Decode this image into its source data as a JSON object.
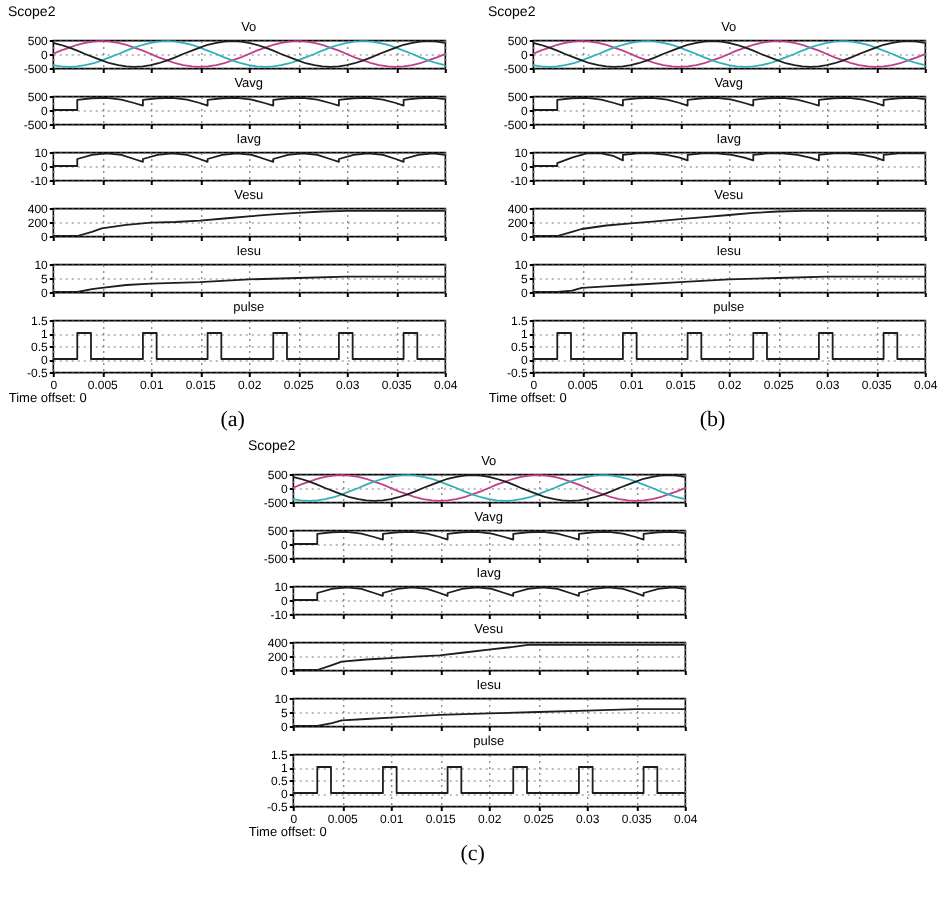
{
  "chart_data": [
    {
      "type": "line",
      "title": "Vo",
      "annotations": [
        "Scope2"
      ],
      "x": [
        0,
        0.0008,
        0.0017,
        0.0025,
        0.0033,
        0.0042,
        0.005,
        0.0058,
        0.0067,
        0.0075,
        0.0083,
        0.0092,
        0.01,
        0.0108,
        0.0117,
        0.0125,
        0.0133,
        0.0142,
        0.015,
        0.0158,
        0.0167,
        0.0175,
        0.0183,
        0.0192,
        0.02,
        0.0208,
        0.0217,
        0.0225,
        0.0233,
        0.0242,
        0.025,
        0.0258,
        0.0267,
        0.0275,
        0.0283,
        0.0292,
        0.03,
        0.0308,
        0.0317,
        0.0325,
        0.0333,
        0.0342,
        0.035,
        0.0358,
        0.0367,
        0.0375,
        0.0383,
        0.0392,
        0.04
      ],
      "series": [
        {
          "color": "#c0408c",
          "values": [
            0,
            120,
            230,
            330,
            400,
            440,
            460,
            440,
            400,
            330,
            230,
            120,
            0,
            -120,
            -230,
            -330,
            -400,
            -440,
            -460,
            -440,
            -400,
            -330,
            -230,
            -120,
            0,
            120,
            230,
            330,
            400,
            440,
            460,
            440,
            400,
            330,
            230,
            120,
            0,
            -120,
            -230,
            -330,
            -400,
            -440,
            -460,
            -440,
            -400,
            -330,
            -230,
            -120,
            0
          ]
        },
        {
          "color": "#30b0b8",
          "values": [
            -400,
            -440,
            -460,
            -440,
            -400,
            -330,
            -230,
            -120,
            0,
            120,
            230,
            330,
            400,
            440,
            460,
            440,
            400,
            330,
            230,
            120,
            0,
            -120,
            -230,
            -330,
            -400,
            -440,
            -460,
            -440,
            -400,
            -330,
            -230,
            -120,
            0,
            120,
            230,
            330,
            400,
            440,
            460,
            440,
            400,
            330,
            230,
            120,
            0,
            -120,
            -230,
            -330,
            -400
          ]
        },
        {
          "color": "#1e1e1e",
          "values": [
            400,
            330,
            230,
            120,
            0,
            -120,
            -230,
            -330,
            -400,
            -440,
            -460,
            -440,
            -400,
            -330,
            -230,
            -120,
            0,
            120,
            230,
            330,
            400,
            440,
            460,
            440,
            400,
            330,
            230,
            120,
            0,
            -120,
            -230,
            -330,
            -400,
            -440,
            -460,
            -440,
            -400,
            -330,
            -230,
            -120,
            0,
            120,
            230,
            330,
            400,
            440,
            460,
            440,
            400
          ]
        }
      ],
      "xlim": [
        0,
        0.04
      ],
      "xticks": [
        0,
        0.005,
        0.01,
        0.015,
        0.02,
        0.025,
        0.03,
        0.035,
        0.04
      ],
      "ylim": [
        -500,
        500
      ],
      "yticks": [
        -500,
        0,
        500
      ],
      "tick_labels": "y",
      "grid": true
    },
    {
      "type": "line",
      "title": "Vavg",
      "x": [
        0,
        0.0025,
        0.0025,
        0.004,
        0.0055,
        0.007,
        0.0083,
        0.0092,
        0.0092,
        0.0107,
        0.0122,
        0.0137,
        0.015,
        0.0158,
        0.0158,
        0.0173,
        0.0188,
        0.0203,
        0.0216,
        0.0225,
        0.0225,
        0.024,
        0.0255,
        0.027,
        0.0283,
        0.0292,
        0.0292,
        0.0307,
        0.0322,
        0.0337,
        0.035,
        0.0358,
        0.0358,
        0.0373,
        0.0388,
        0.04
      ],
      "series": [
        {
          "color": "#1e1e1e",
          "values": [
            0,
            0,
            360,
            420,
            430,
            370,
            250,
            160,
            360,
            420,
            430,
            370,
            250,
            160,
            360,
            420,
            430,
            370,
            250,
            160,
            360,
            420,
            430,
            370,
            250,
            160,
            360,
            420,
            430,
            370,
            250,
            160,
            360,
            420,
            430,
            390
          ]
        }
      ],
      "xlim": [
        0,
        0.04
      ],
      "xticks": [
        0,
        0.005,
        0.01,
        0.015,
        0.02,
        0.025,
        0.03,
        0.035,
        0.04
      ],
      "ylim": [
        -500,
        500
      ],
      "yticks": [
        -500,
        0,
        500
      ],
      "tick_labels": "y",
      "grid": true
    },
    {
      "type": "line",
      "title": "Iavg",
      "x": [
        0,
        0.0025,
        0.0025,
        0.004,
        0.0055,
        0.007,
        0.0083,
        0.0092,
        0.0092,
        0.0107,
        0.0122,
        0.0137,
        0.015,
        0.0158,
        0.0158,
        0.0173,
        0.0188,
        0.0203,
        0.0216,
        0.0225,
        0.0225,
        0.024,
        0.0255,
        0.027,
        0.0283,
        0.0292,
        0.0292,
        0.0307,
        0.0322,
        0.0337,
        0.035,
        0.0358,
        0.0358,
        0.0373,
        0.0388,
        0.04
      ],
      "series": [
        {
          "color": "#1e1e1e",
          "values": [
            0,
            0,
            5,
            8,
            9,
            8,
            5,
            3,
            5,
            8,
            9,
            8,
            5,
            3,
            5,
            8,
            9,
            8,
            5,
            3,
            5,
            8,
            9,
            8,
            5,
            3,
            5,
            8,
            9,
            8,
            5,
            3,
            5,
            8,
            9,
            8
          ]
        }
      ],
      "xlim": [
        0,
        0.04
      ],
      "xticks": [
        0,
        0.005,
        0.01,
        0.015,
        0.02,
        0.025,
        0.03,
        0.035,
        0.04
      ],
      "ylim": [
        -10,
        10
      ],
      "yticks": [
        -10,
        0,
        10
      ],
      "tick_labels": "y",
      "grid": true
    },
    {
      "type": "line",
      "title": "Vesu",
      "x": [
        0,
        0.0025,
        0.004,
        0.005,
        0.0075,
        0.01,
        0.0125,
        0.015,
        0.0175,
        0.02,
        0.0225,
        0.025,
        0.0275,
        0.03,
        0.035,
        0.04
      ],
      "series": [
        {
          "color": "#1e1e1e",
          "values": [
            0,
            0,
            60,
            110,
            160,
            190,
            200,
            220,
            250,
            280,
            310,
            330,
            350,
            360,
            360,
            360
          ]
        }
      ],
      "xlim": [
        0,
        0.04
      ],
      "xticks": [
        0,
        0.005,
        0.01,
        0.015,
        0.02,
        0.025,
        0.03,
        0.035,
        0.04
      ],
      "ylim": [
        0,
        400
      ],
      "yticks": [
        0,
        200,
        400
      ],
      "tick_labels": "y",
      "grid": true
    },
    {
      "type": "line",
      "title": "Iesu",
      "x": [
        0,
        0.0025,
        0.004,
        0.005,
        0.0075,
        0.01,
        0.015,
        0.02,
        0.025,
        0.03,
        0.035,
        0.04
      ],
      "series": [
        {
          "color": "#1e1e1e",
          "values": [
            0,
            0,
            1,
            1.5,
            2.5,
            3,
            3.5,
            4.5,
            5,
            5.5,
            5.5,
            5.5
          ]
        }
      ],
      "xlim": [
        0,
        0.04
      ],
      "xticks": [
        0,
        0.005,
        0.01,
        0.015,
        0.02,
        0.025,
        0.03,
        0.035,
        0.04
      ],
      "ylim": [
        0,
        10
      ],
      "yticks": [
        0,
        5,
        10
      ],
      "tick_labels": "y",
      "grid": true
    },
    {
      "type": "step",
      "title": "pulse",
      "annotations": [
        "Time offset: 0",
        "(a)"
      ],
      "x": [
        0,
        0.0025,
        0.0039,
        0.0092,
        0.0106,
        0.0158,
        0.0172,
        0.0225,
        0.0239,
        0.0292,
        0.0306,
        0.0358,
        0.0372,
        0.04
      ],
      "series": [
        {
          "color": "#1e1e1e",
          "values": [
            0,
            1,
            0,
            1,
            0,
            1,
            0,
            1,
            0,
            1,
            0,
            1,
            0,
            0
          ]
        }
      ],
      "xlim": [
        0,
        0.04
      ],
      "xticks": [
        0,
        0.005,
        0.01,
        0.015,
        0.02,
        0.025,
        0.03,
        0.035,
        0.04
      ],
      "ylim": [
        -0.5,
        1.5
      ],
      "yticks": [
        -0.5,
        0,
        0.5,
        1,
        1.5
      ],
      "grid": true
    },
    {
      "type": "line",
      "title": "Vo",
      "annotations": [
        "Scope2"
      ],
      "x": [
        0,
        0.0008,
        0.0017,
        0.0025,
        0.0033,
        0.0042,
        0.005,
        0.0058,
        0.0067,
        0.0075,
        0.0083,
        0.0092,
        0.01,
        0.0108,
        0.0117,
        0.0125,
        0.0133,
        0.0142,
        0.015,
        0.0158,
        0.0167,
        0.0175,
        0.0183,
        0.0192,
        0.02,
        0.0208,
        0.0217,
        0.0225,
        0.0233,
        0.0242,
        0.025,
        0.0258,
        0.0267,
        0.0275,
        0.0283,
        0.0292,
        0.03,
        0.0308,
        0.0317,
        0.0325,
        0.0333,
        0.0342,
        0.035,
        0.0358,
        0.0367,
        0.0375,
        0.0383,
        0.0392,
        0.04
      ],
      "series": [
        {
          "color": "#c0408c",
          "values": [
            0,
            120,
            230,
            330,
            400,
            440,
            460,
            440,
            400,
            330,
            230,
            120,
            0,
            -120,
            -230,
            -330,
            -400,
            -440,
            -460,
            -440,
            -400,
            -330,
            -230,
            -120,
            0,
            120,
            230,
            330,
            400,
            440,
            460,
            440,
            400,
            330,
            230,
            120,
            0,
            -120,
            -230,
            -330,
            -400,
            -440,
            -460,
            -440,
            -400,
            -330,
            -230,
            -120,
            0
          ]
        },
        {
          "color": "#30b0b8",
          "values": [
            -400,
            -440,
            -460,
            -440,
            -400,
            -330,
            -230,
            -120,
            0,
            120,
            230,
            330,
            400,
            440,
            460,
            440,
            400,
            330,
            230,
            120,
            0,
            -120,
            -230,
            -330,
            -400,
            -440,
            -460,
            -440,
            -400,
            -330,
            -230,
            -120,
            0,
            120,
            230,
            330,
            400,
            440,
            460,
            440,
            400,
            330,
            230,
            120,
            0,
            -120,
            -230,
            -330,
            -400
          ]
        },
        {
          "color": "#1e1e1e",
          "values": [
            400,
            330,
            230,
            120,
            0,
            -120,
            -230,
            -330,
            -400,
            -440,
            -460,
            -440,
            -400,
            -330,
            -230,
            -120,
            0,
            120,
            230,
            330,
            400,
            440,
            460,
            440,
            400,
            330,
            230,
            120,
            0,
            -120,
            -230,
            -330,
            -400,
            -440,
            -460,
            -440,
            -400,
            -330,
            -230,
            -120,
            0,
            120,
            230,
            330,
            400,
            440,
            460,
            440,
            400
          ]
        }
      ],
      "xlim": [
        0,
        0.04
      ],
      "xticks": [
        0,
        0.005,
        0.01,
        0.015,
        0.02,
        0.025,
        0.03,
        0.035,
        0.04
      ],
      "ylim": [
        -500,
        500
      ],
      "yticks": [
        -500,
        0,
        500
      ],
      "tick_labels": "y",
      "grid": true
    },
    {
      "type": "line",
      "title": "Vavg",
      "x": [
        0,
        0.0025,
        0.0025,
        0.004,
        0.0055,
        0.007,
        0.0083,
        0.0092,
        0.0092,
        0.0107,
        0.0122,
        0.0137,
        0.015,
        0.0158,
        0.0158,
        0.0173,
        0.0188,
        0.0203,
        0.0216,
        0.0225,
        0.0225,
        0.024,
        0.0255,
        0.027,
        0.0283,
        0.0292,
        0.0292,
        0.0307,
        0.0322,
        0.0337,
        0.035,
        0.0358,
        0.0358,
        0.0373,
        0.0388,
        0.04
      ],
      "series": [
        {
          "color": "#1e1e1e",
          "values": [
            0,
            0,
            360,
            420,
            430,
            370,
            250,
            160,
            360,
            420,
            430,
            370,
            250,
            160,
            360,
            420,
            430,
            370,
            250,
            160,
            360,
            420,
            430,
            370,
            250,
            160,
            360,
            420,
            430,
            370,
            250,
            160,
            360,
            420,
            430,
            390
          ]
        }
      ],
      "xlim": [
        0,
        0.04
      ],
      "xticks": [
        0,
        0.005,
        0.01,
        0.015,
        0.02,
        0.025,
        0.03,
        0.035,
        0.04
      ],
      "ylim": [
        -500,
        500
      ],
      "yticks": [
        -500,
        0,
        500
      ],
      "tick_labels": "y",
      "grid": true
    },
    {
      "type": "line",
      "title": "Iavg",
      "x": [
        0,
        0.0025,
        0.0025,
        0.004,
        0.0055,
        0.007,
        0.0083,
        0.0092,
        0.0092,
        0.0107,
        0.0122,
        0.0137,
        0.015,
        0.0158,
        0.0158,
        0.0173,
        0.0188,
        0.0203,
        0.0216,
        0.0225,
        0.0225,
        0.024,
        0.0255,
        0.027,
        0.0283,
        0.0292,
        0.0292,
        0.0307,
        0.0322,
        0.0337,
        0.035,
        0.0358,
        0.0358,
        0.0373,
        0.0388,
        0.04
      ],
      "series": [
        {
          "color": "#1e1e1e",
          "values": [
            0,
            0,
            2,
            6,
            9,
            9,
            7,
            4,
            8,
            9,
            9,
            8,
            6,
            4,
            8,
            9,
            9,
            8,
            6,
            4,
            8,
            9,
            9,
            8,
            6,
            4,
            8,
            9,
            9,
            8,
            6,
            4,
            8,
            9,
            9,
            9
          ]
        }
      ],
      "xlim": [
        0,
        0.04
      ],
      "xticks": [
        0,
        0.005,
        0.01,
        0.015,
        0.02,
        0.025,
        0.03,
        0.035,
        0.04
      ],
      "ylim": [
        -10,
        10
      ],
      "yticks": [
        -10,
        0,
        10
      ],
      "tick_labels": "y",
      "grid": true
    },
    {
      "type": "line",
      "title": "Vesu",
      "x": [
        0,
        0.0025,
        0.004,
        0.005,
        0.0075,
        0.01,
        0.0125,
        0.015,
        0.0175,
        0.02,
        0.0225,
        0.025,
        0.0275,
        0.03,
        0.035,
        0.04
      ],
      "series": [
        {
          "color": "#1e1e1e",
          "values": [
            0,
            0,
            60,
            100,
            150,
            180,
            210,
            240,
            270,
            300,
            330,
            350,
            360,
            360,
            360,
            360
          ]
        }
      ],
      "xlim": [
        0,
        0.04
      ],
      "xticks": [
        0,
        0.005,
        0.01,
        0.015,
        0.02,
        0.025,
        0.03,
        0.035,
        0.04
      ],
      "ylim": [
        0,
        400
      ],
      "yticks": [
        0,
        200,
        400
      ],
      "tick_labels": "y",
      "grid": true
    },
    {
      "type": "line",
      "title": "Iesu",
      "x": [
        0,
        0.0025,
        0.004,
        0.005,
        0.0075,
        0.01,
        0.015,
        0.02,
        0.025,
        0.03,
        0.035,
        0.04
      ],
      "series": [
        {
          "color": "#1e1e1e",
          "values": [
            0,
            0,
            0.5,
            1.5,
            2,
            2.5,
            3.5,
            4.5,
            5,
            5.5,
            5.5,
            5.5
          ]
        }
      ],
      "xlim": [
        0,
        0.04
      ],
      "xticks": [
        0,
        0.005,
        0.01,
        0.015,
        0.02,
        0.025,
        0.03,
        0.035,
        0.04
      ],
      "ylim": [
        0,
        10
      ],
      "yticks": [
        0,
        5,
        10
      ],
      "tick_labels": "y",
      "grid": true
    },
    {
      "type": "step",
      "title": "pulse",
      "annotations": [
        "Time offset: 0",
        "(b)"
      ],
      "x": [
        0,
        0.0025,
        0.0039,
        0.0092,
        0.0106,
        0.0158,
        0.0172,
        0.0225,
        0.0239,
        0.0292,
        0.0306,
        0.0358,
        0.0372,
        0.04
      ],
      "series": [
        {
          "color": "#1e1e1e",
          "values": [
            0,
            1,
            0,
            1,
            0,
            1,
            0,
            1,
            0,
            1,
            0,
            1,
            0,
            0
          ]
        }
      ],
      "xlim": [
        0,
        0.04
      ],
      "xticks": [
        0,
        0.005,
        0.01,
        0.015,
        0.02,
        0.025,
        0.03,
        0.035,
        0.04
      ],
      "ylim": [
        -0.5,
        1.5
      ],
      "yticks": [
        -0.5,
        0,
        0.5,
        1,
        1.5
      ],
      "grid": true
    },
    {
      "type": "line",
      "title": "Vo",
      "annotations": [
        "Scope2"
      ],
      "x": [
        0,
        0.0008,
        0.0017,
        0.0025,
        0.0033,
        0.0042,
        0.005,
        0.0058,
        0.0067,
        0.0075,
        0.0083,
        0.0092,
        0.01,
        0.0108,
        0.0117,
        0.0125,
        0.0133,
        0.0142,
        0.015,
        0.0158,
        0.0167,
        0.0175,
        0.0183,
        0.0192,
        0.02,
        0.0208,
        0.0217,
        0.0225,
        0.0233,
        0.0242,
        0.025,
        0.0258,
        0.0267,
        0.0275,
        0.0283,
        0.0292,
        0.03,
        0.0308,
        0.0317,
        0.0325,
        0.0333,
        0.0342,
        0.035,
        0.0358,
        0.0367,
        0.0375,
        0.0383,
        0.0392,
        0.04
      ],
      "series": [
        {
          "color": "#c0408c",
          "values": [
            0,
            120,
            230,
            330,
            400,
            440,
            460,
            440,
            400,
            330,
            230,
            120,
            0,
            -120,
            -230,
            -330,
            -400,
            -440,
            -460,
            -440,
            -400,
            -330,
            -230,
            -120,
            0,
            120,
            230,
            330,
            400,
            440,
            460,
            440,
            400,
            330,
            230,
            120,
            0,
            -120,
            -230,
            -330,
            -400,
            -440,
            -460,
            -440,
            -400,
            -330,
            -230,
            -120,
            0
          ]
        },
        {
          "color": "#30b0b8",
          "values": [
            -400,
            -440,
            -460,
            -440,
            -400,
            -330,
            -230,
            -120,
            0,
            120,
            230,
            330,
            400,
            440,
            460,
            440,
            400,
            330,
            230,
            120,
            0,
            -120,
            -230,
            -330,
            -400,
            -440,
            -460,
            -440,
            -400,
            -330,
            -230,
            -120,
            0,
            120,
            230,
            330,
            400,
            440,
            460,
            440,
            400,
            330,
            230,
            120,
            0,
            -120,
            -230,
            -330,
            -400
          ]
        },
        {
          "color": "#1e1e1e",
          "values": [
            400,
            330,
            230,
            120,
            0,
            -120,
            -230,
            -330,
            -400,
            -440,
            -460,
            -440,
            -400,
            -330,
            -230,
            -120,
            0,
            120,
            230,
            330,
            400,
            440,
            460,
            440,
            400,
            330,
            230,
            120,
            0,
            -120,
            -230,
            -330,
            -400,
            -440,
            -460,
            -440,
            -400,
            -330,
            -230,
            -120,
            0,
            120,
            230,
            330,
            400,
            440,
            460,
            440,
            400
          ]
        }
      ],
      "xlim": [
        0,
        0.04
      ],
      "xticks": [
        0,
        0.005,
        0.01,
        0.015,
        0.02,
        0.025,
        0.03,
        0.035,
        0.04
      ],
      "ylim": [
        -500,
        500
      ],
      "yticks": [
        -500,
        0,
        500
      ],
      "tick_labels": "y",
      "grid": true
    },
    {
      "type": "line",
      "title": "Vavg",
      "x": [
        0,
        0.0025,
        0.0025,
        0.004,
        0.0055,
        0.007,
        0.0083,
        0.0092,
        0.0092,
        0.0107,
        0.0122,
        0.0137,
        0.015,
        0.0158,
        0.0158,
        0.0173,
        0.0188,
        0.0203,
        0.0216,
        0.0225,
        0.0225,
        0.024,
        0.0255,
        0.027,
        0.0283,
        0.0292,
        0.0292,
        0.0307,
        0.0322,
        0.0337,
        0.035,
        0.0358,
        0.0358,
        0.0373,
        0.0388,
        0.04
      ],
      "series": [
        {
          "color": "#1e1e1e",
          "values": [
            0,
            0,
            360,
            420,
            430,
            370,
            250,
            160,
            360,
            420,
            430,
            370,
            250,
            160,
            360,
            420,
            430,
            370,
            250,
            160,
            360,
            420,
            430,
            370,
            250,
            160,
            360,
            420,
            430,
            370,
            250,
            160,
            360,
            420,
            430,
            390
          ]
        }
      ],
      "xlim": [
        0,
        0.04
      ],
      "xticks": [
        0,
        0.005,
        0.01,
        0.015,
        0.02,
        0.025,
        0.03,
        0.035,
        0.04
      ],
      "ylim": [
        -500,
        500
      ],
      "yticks": [
        -500,
        0,
        500
      ],
      "tick_labels": "y",
      "grid": true
    },
    {
      "type": "line",
      "title": "Iavg",
      "x": [
        0,
        0.0025,
        0.0025,
        0.004,
        0.0055,
        0.007,
        0.0083,
        0.0092,
        0.0092,
        0.0107,
        0.0122,
        0.0137,
        0.015,
        0.0158,
        0.0158,
        0.0173,
        0.0188,
        0.0203,
        0.0216,
        0.0225,
        0.0225,
        0.024,
        0.0255,
        0.027,
        0.0283,
        0.0292,
        0.0292,
        0.0307,
        0.0322,
        0.0337,
        0.035,
        0.0358,
        0.0358,
        0.0373,
        0.0388,
        0.04
      ],
      "series": [
        {
          "color": "#1e1e1e",
          "values": [
            0,
            0,
            5,
            8,
            9,
            8,
            5,
            3,
            5,
            8,
            9,
            8,
            5,
            3,
            5,
            8,
            9,
            8,
            5,
            3,
            5,
            8,
            9,
            8,
            5,
            3,
            5,
            8,
            9,
            8,
            5,
            3,
            5,
            8,
            9,
            8
          ]
        }
      ],
      "xlim": [
        0,
        0.04
      ],
      "xticks": [
        0,
        0.005,
        0.01,
        0.015,
        0.02,
        0.025,
        0.03,
        0.035,
        0.04
      ],
      "ylim": [
        -10,
        10
      ],
      "yticks": [
        -10,
        0,
        10
      ],
      "tick_labels": "y",
      "grid": true
    },
    {
      "type": "line",
      "title": "Vesu",
      "x": [
        0,
        0.0025,
        0.004,
        0.005,
        0.0075,
        0.01,
        0.0125,
        0.015,
        0.0175,
        0.02,
        0.0225,
        0.024,
        0.0275,
        0.03,
        0.035,
        0.04
      ],
      "series": [
        {
          "color": "#1e1e1e",
          "values": [
            0,
            0,
            70,
            120,
            150,
            170,
            190,
            210,
            250,
            290,
            330,
            360,
            360,
            360,
            360,
            360
          ]
        }
      ],
      "xlim": [
        0,
        0.04
      ],
      "xticks": [
        0,
        0.005,
        0.01,
        0.015,
        0.02,
        0.025,
        0.03,
        0.035,
        0.04
      ],
      "ylim": [
        0,
        400
      ],
      "yticks": [
        0,
        200,
        400
      ],
      "tick_labels": "y",
      "grid": true
    },
    {
      "type": "line",
      "title": "Iesu",
      "x": [
        0,
        0.0025,
        0.004,
        0.005,
        0.0075,
        0.01,
        0.015,
        0.02,
        0.025,
        0.03,
        0.035,
        0.04
      ],
      "series": [
        {
          "color": "#1e1e1e",
          "values": [
            0,
            0,
            1,
            2,
            2.5,
            3,
            4,
            4.5,
            5,
            5.5,
            6,
            6
          ]
        }
      ],
      "xlim": [
        0,
        0.04
      ],
      "xticks": [
        0,
        0.005,
        0.01,
        0.015,
        0.02,
        0.025,
        0.03,
        0.035,
        0.04
      ],
      "ylim": [
        0,
        10
      ],
      "yticks": [
        0,
        5,
        10
      ],
      "tick_labels": "y",
      "grid": true
    },
    {
      "type": "step",
      "title": "pulse",
      "annotations": [
        "Time offset: 0",
        "(c)"
      ],
      "x": [
        0,
        0.0025,
        0.0039,
        0.0092,
        0.0106,
        0.0158,
        0.0172,
        0.0225,
        0.0239,
        0.0292,
        0.0306,
        0.0358,
        0.0372,
        0.04
      ],
      "series": [
        {
          "color": "#1e1e1e",
          "values": [
            0,
            1,
            0,
            1,
            0,
            1,
            0,
            1,
            0,
            1,
            0,
            1,
            0,
            0
          ]
        }
      ],
      "xlim": [
        0,
        0.04
      ],
      "xticks": [
        0,
        0.005,
        0.01,
        0.015,
        0.02,
        0.025,
        0.03,
        0.035,
        0.04
      ],
      "ylim": [
        -0.5,
        1.5
      ],
      "yticks": [
        -0.5,
        0,
        0.5,
        1,
        1.5
      ],
      "grid": true
    }
  ]
}
